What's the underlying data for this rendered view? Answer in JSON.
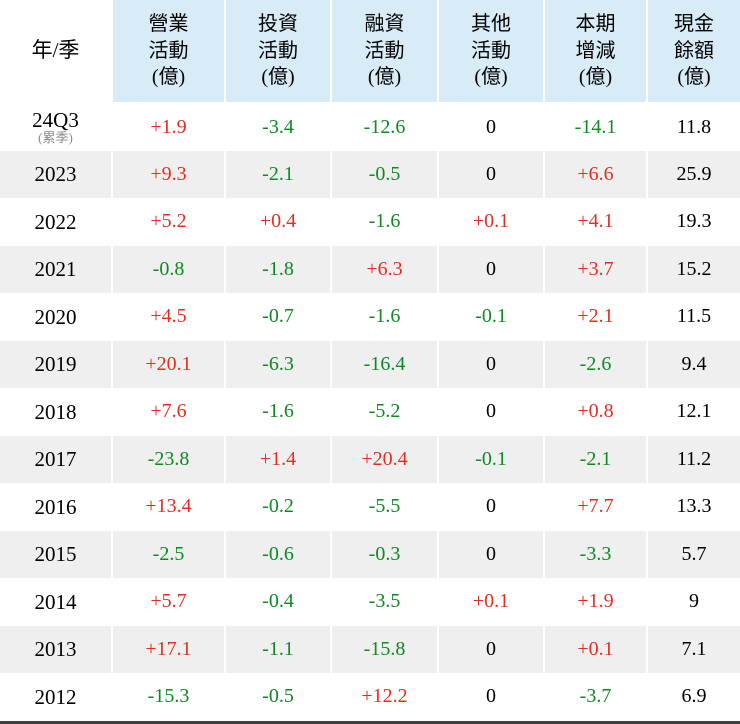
{
  "colors": {
    "positive": "#e02f1f",
    "negative": "#0d8a22",
    "neutral": "#000000",
    "header_bg": "#d8ecf7",
    "row_alt_bg": "#efefef",
    "corner_bg": "#ffffff",
    "note_gray": "#8a8a8a"
  },
  "chart_data": {
    "type": "table",
    "title": "",
    "unit_note": "(億)",
    "columns": [
      "年/季",
      "營業\n活動\n(億)",
      "投資\n活動\n(億)",
      "融資\n活動\n(億)",
      "其他\n活動\n(億)",
      "本期\n增減\n(億)",
      "現金\n餘額\n(億)"
    ],
    "rows": [
      {
        "year": "24Q3",
        "note": "(累季)",
        "values": [
          "+1.9",
          "-3.4",
          "-12.6",
          "0",
          "-14.1",
          "11.8"
        ]
      },
      {
        "year": "2023",
        "note": "",
        "values": [
          "+9.3",
          "-2.1",
          "-0.5",
          "0",
          "+6.6",
          "25.9"
        ]
      },
      {
        "year": "2022",
        "note": "",
        "values": [
          "+5.2",
          "+0.4",
          "-1.6",
          "+0.1",
          "+4.1",
          "19.3"
        ]
      },
      {
        "year": "2021",
        "note": "",
        "values": [
          "-0.8",
          "-1.8",
          "+6.3",
          "0",
          "+3.7",
          "15.2"
        ]
      },
      {
        "year": "2020",
        "note": "",
        "values": [
          "+4.5",
          "-0.7",
          "-1.6",
          "-0.1",
          "+2.1",
          "11.5"
        ]
      },
      {
        "year": "2019",
        "note": "",
        "values": [
          "+20.1",
          "-6.3",
          "-16.4",
          "0",
          "-2.6",
          "9.4"
        ]
      },
      {
        "year": "2018",
        "note": "",
        "values": [
          "+7.6",
          "-1.6",
          "-5.2",
          "0",
          "+0.8",
          "12.1"
        ]
      },
      {
        "year": "2017",
        "note": "",
        "values": [
          "-23.8",
          "+1.4",
          "+20.4",
          "-0.1",
          "-2.1",
          "11.2"
        ]
      },
      {
        "year": "2016",
        "note": "",
        "values": [
          "+13.4",
          "-0.2",
          "-5.5",
          "0",
          "+7.7",
          "13.3"
        ]
      },
      {
        "year": "2015",
        "note": "",
        "values": [
          "-2.5",
          "-0.6",
          "-0.3",
          "0",
          "-3.3",
          "5.7"
        ]
      },
      {
        "year": "2014",
        "note": "",
        "values": [
          "+5.7",
          "-0.4",
          "-3.5",
          "+0.1",
          "+1.9",
          "9"
        ]
      },
      {
        "year": "2013",
        "note": "",
        "values": [
          "+17.1",
          "-1.1",
          "-15.8",
          "0",
          "+0.1",
          "7.1"
        ]
      },
      {
        "year": "2012",
        "note": "",
        "values": [
          "-15.3",
          "-0.5",
          "+12.2",
          "0",
          "-3.7",
          "6.9"
        ]
      }
    ],
    "color_convention": {
      "positive_values": "red",
      "negative_values": "green",
      "zero_and_balance": "black"
    }
  }
}
